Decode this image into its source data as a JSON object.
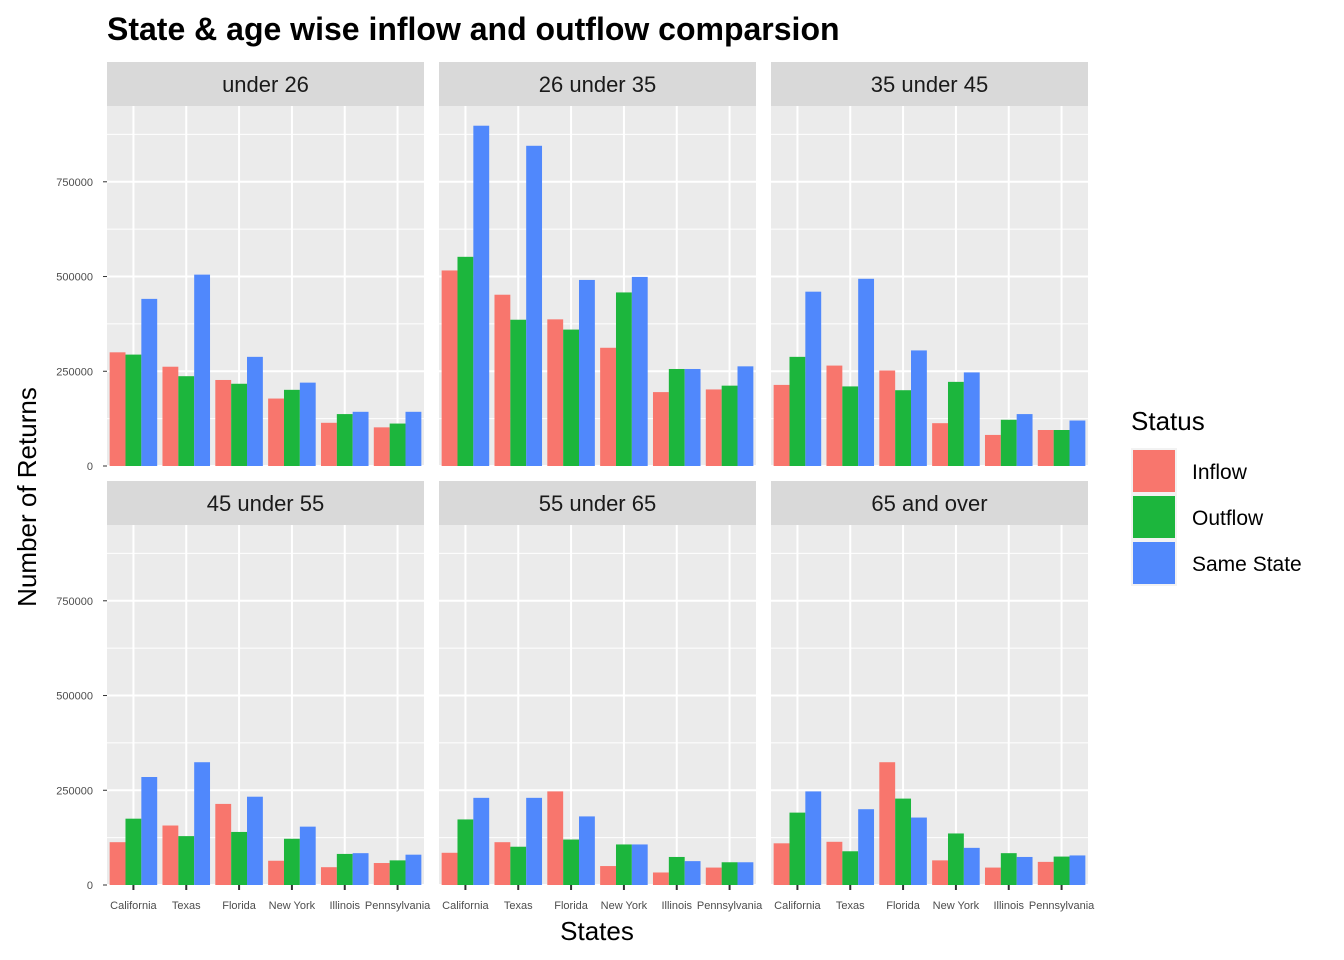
{
  "chart_data": {
    "type": "bar",
    "title": "State & age wise inflow and outflow comparsion",
    "xlabel": "States",
    "ylabel": "Number of Returns",
    "categories": [
      "California",
      "Texas",
      "Florida",
      "New York",
      "Illinois",
      "Pennsylvania"
    ],
    "ylim": [
      0,
      950000
    ],
    "yticks": [
      0,
      250000,
      500000,
      750000
    ],
    "ytick_labels": [
      "0",
      "250000",
      "500000",
      "750000"
    ],
    "grid": true,
    "legend": {
      "title": "Status",
      "placement": "right",
      "entries": [
        "Inflow",
        "Outflow",
        "Same State"
      ]
    },
    "colors": {
      "Inflow": "#f8766d",
      "Outflow": "#1cb63d",
      "Same State": "#5088fc",
      "panel_bg": "#ebebeb",
      "strip_bg": "#d9d9d9",
      "grid": "#ffffff"
    },
    "facets": [
      {
        "label": "under 26",
        "series": [
          {
            "name": "Inflow",
            "values": [
              300000,
              262000,
              227000,
              178000,
              114000,
              102000
            ]
          },
          {
            "name": "Outflow",
            "values": [
              294000,
              237000,
              217000,
              201000,
              137000,
              112000
            ]
          },
          {
            "name": "Same State",
            "values": [
              441000,
              505000,
              288000,
              220000,
              143000,
              143000
            ]
          }
        ]
      },
      {
        "label": "26 under 35",
        "series": [
          {
            "name": "Inflow",
            "values": [
              516000,
              452000,
              387000,
              312000,
              195000,
              202000
            ]
          },
          {
            "name": "Outflow",
            "values": [
              552000,
              386000,
              360000,
              458000,
              256000,
              212000
            ]
          },
          {
            "name": "Same State",
            "values": [
              898000,
              845000,
              491000,
              499000,
              256000,
              263000
            ]
          }
        ]
      },
      {
        "label": "35 under 45",
        "series": [
          {
            "name": "Inflow",
            "values": [
              214000,
              265000,
              252000,
              113000,
              82000,
              95000
            ]
          },
          {
            "name": "Outflow",
            "values": [
              288000,
              210000,
              200000,
              222000,
              122000,
              95000
            ]
          },
          {
            "name": "Same State",
            "values": [
              460000,
              494000,
              305000,
              247000,
              137000,
              120000
            ]
          }
        ]
      },
      {
        "label": "45 under 55",
        "series": [
          {
            "name": "Inflow",
            "values": [
              113000,
              157000,
              214000,
              64000,
              47000,
              58000
            ]
          },
          {
            "name": "Outflow",
            "values": [
              175000,
              129000,
              140000,
              122000,
              82000,
              65000
            ]
          },
          {
            "name": "Same State",
            "values": [
              285000,
              324000,
              233000,
              154000,
              84000,
              80000
            ]
          }
        ]
      },
      {
        "label": "55 under 65",
        "series": [
          {
            "name": "Inflow",
            "values": [
              85000,
              113000,
              247000,
              50000,
              33000,
              46000
            ]
          },
          {
            "name": "Outflow",
            "values": [
              173000,
              101000,
              120000,
              107000,
              74000,
              60000
            ]
          },
          {
            "name": "Same State",
            "values": [
              230000,
              230000,
              181000,
              107000,
              63000,
              60000
            ]
          }
        ]
      },
      {
        "label": "65 and over",
        "series": [
          {
            "name": "Inflow",
            "values": [
              110000,
              114000,
              324000,
              65000,
              46000,
              61000
            ]
          },
          {
            "name": "Outflow",
            "values": [
              191000,
              89000,
              228000,
              136000,
              84000,
              75000
            ]
          },
          {
            "name": "Same State",
            "values": [
              247000,
              200000,
              178000,
              98000,
              74000,
              78000
            ]
          }
        ]
      }
    ]
  }
}
